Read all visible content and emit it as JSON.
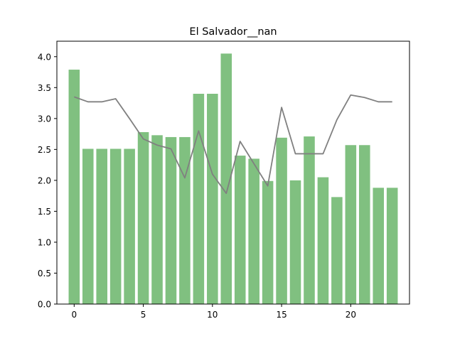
{
  "chart_data": {
    "type": "bar",
    "title": "El Salvador__nan",
    "xlabel": "",
    "ylabel": "",
    "x": [
      0,
      1,
      2,
      3,
      4,
      5,
      6,
      7,
      8,
      9,
      10,
      11,
      12,
      13,
      14,
      15,
      16,
      17,
      18,
      19,
      20,
      21,
      22,
      23
    ],
    "series": [
      {
        "name": "bars",
        "type": "bar",
        "color": "#80c080",
        "values": [
          3.79,
          2.51,
          2.51,
          2.51,
          2.51,
          2.78,
          2.73,
          2.7,
          2.7,
          3.4,
          3.4,
          4.05,
          2.4,
          2.35,
          1.99,
          2.69,
          2.0,
          2.71,
          2.05,
          1.73,
          2.57,
          2.57,
          1.88,
          1.88
        ]
      },
      {
        "name": "line",
        "type": "line",
        "color": "#808080",
        "values": [
          3.35,
          3.27,
          3.27,
          3.32,
          3.0,
          2.67,
          2.57,
          2.51,
          2.04,
          2.8,
          2.1,
          1.79,
          2.63,
          2.27,
          1.91,
          3.18,
          2.43,
          2.43,
          2.43,
          2.98,
          3.38,
          3.34,
          3.27,
          3.27
        ]
      }
    ],
    "xlim": [
      -1.25,
      24.25
    ],
    "ylim": [
      0,
      4.25
    ],
    "xticks": [
      0,
      5,
      10,
      15,
      20
    ],
    "yticks": [
      0.0,
      0.5,
      1.0,
      1.5,
      2.0,
      2.5,
      3.0,
      3.5,
      4.0
    ],
    "ytick_labels": [
      "0.0",
      "0.5",
      "1.0",
      "1.5",
      "2.0",
      "2.5",
      "3.0",
      "3.5",
      "4.0"
    ],
    "xtick_labels": [
      "0",
      "5",
      "10",
      "15",
      "20"
    ],
    "grid": false,
    "legend": "none"
  }
}
